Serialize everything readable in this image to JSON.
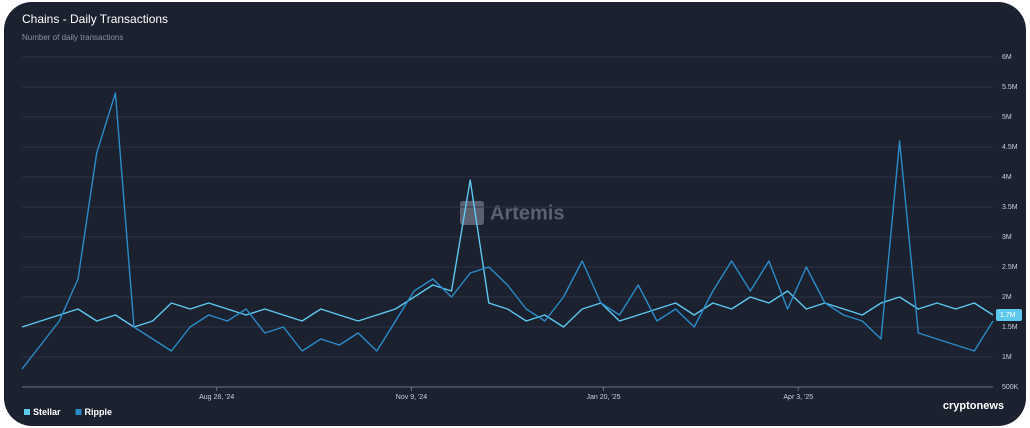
{
  "chart_data": {
    "type": "line",
    "title": "Chains - Daily Transactions",
    "subtitle": "Number of daily transactions",
    "watermark": "Artemis",
    "source": "cryptonews",
    "x": [
      "2024-06-16",
      "2024-06-23",
      "2024-06-30",
      "2024-07-07",
      "2024-07-14",
      "2024-07-21",
      "2024-07-28",
      "2024-08-04",
      "2024-08-11",
      "2024-08-18",
      "2024-08-25",
      "2024-09-01",
      "2024-09-08",
      "2024-09-15",
      "2024-09-22",
      "2024-09-29",
      "2024-10-06",
      "2024-10-13",
      "2024-10-20",
      "2024-10-27",
      "2024-11-03",
      "2024-11-10",
      "2024-11-17",
      "2024-11-24",
      "2024-12-01",
      "2024-12-08",
      "2024-12-15",
      "2024-12-22",
      "2024-12-29",
      "2025-01-05",
      "2025-01-12",
      "2025-01-19",
      "2025-01-26",
      "2025-02-02",
      "2025-02-09",
      "2025-02-16",
      "2025-02-23",
      "2025-03-02",
      "2025-03-09",
      "2025-03-16",
      "2025-03-23",
      "2025-03-30",
      "2025-04-06",
      "2025-04-13",
      "2025-04-20",
      "2025-04-27",
      "2025-05-04",
      "2025-05-11",
      "2025-05-18",
      "2025-05-25",
      "2025-06-01",
      "2025-06-08",
      "2025-06-15"
    ],
    "series": [
      {
        "name": "Stellar",
        "color": "#5ec8ef",
        "last_label": "1.7M",
        "values": [
          1500000,
          1600000,
          1700000,
          1800000,
          1600000,
          1700000,
          1500000,
          1600000,
          1900000,
          1800000,
          1900000,
          1800000,
          1700000,
          1800000,
          1700000,
          1600000,
          1800000,
          1700000,
          1600000,
          1700000,
          1800000,
          2000000,
          2200000,
          2100000,
          3950000,
          1900000,
          1800000,
          1600000,
          1700000,
          1500000,
          1800000,
          1900000,
          1600000,
          1700000,
          1800000,
          1900000,
          1700000,
          1900000,
          1800000,
          2000000,
          1900000,
          2100000,
          1800000,
          1900000,
          1800000,
          1700000,
          1900000,
          2000000,
          1800000,
          1900000,
          1800000,
          1900000,
          1700000
        ]
      },
      {
        "name": "Ripple",
        "color": "#2b8cc9",
        "values": [
          800000,
          1200000,
          1600000,
          2300000,
          4400000,
          5400000,
          1500000,
          1300000,
          1100000,
          1500000,
          1700000,
          1600000,
          1800000,
          1400000,
          1500000,
          1100000,
          1300000,
          1200000,
          1400000,
          1100000,
          1600000,
          2100000,
          2300000,
          2000000,
          2400000,
          2500000,
          2200000,
          1800000,
          1600000,
          2000000,
          2600000,
          1900000,
          1700000,
          2200000,
          1600000,
          1800000,
          1500000,
          2100000,
          2600000,
          2100000,
          2600000,
          1800000,
          2500000,
          1900000,
          1700000,
          1600000,
          1300000,
          4600000,
          1400000,
          1300000,
          1200000,
          1100000,
          1600000
        ]
      }
    ],
    "xlim": [
      "2024-06-16",
      "2025-06-15"
    ],
    "xticks": [
      {
        "value": "2024-08-28",
        "label": "Aug 28, '24"
      },
      {
        "value": "2024-11-09",
        "label": "Nov 9, '24"
      },
      {
        "value": "2025-01-20",
        "label": "Jan 20, '25"
      },
      {
        "value": "2025-04-03",
        "label": "Apr 3, '25"
      }
    ],
    "ylim": [
      500000,
      6000000
    ],
    "yticks": [
      {
        "value": 500000,
        "label": "500K"
      },
      {
        "value": 1000000,
        "label": "1M"
      },
      {
        "value": 1500000,
        "label": "1.5M"
      },
      {
        "value": 2000000,
        "label": "2M"
      },
      {
        "value": 2500000,
        "label": "2.5M"
      },
      {
        "value": 3000000,
        "label": "3M"
      },
      {
        "value": 3500000,
        "label": "3.5M"
      },
      {
        "value": 4000000,
        "label": "4M"
      },
      {
        "value": 4500000,
        "label": "4.5M"
      },
      {
        "value": 5000000,
        "label": "5M"
      },
      {
        "value": 5500000,
        "label": "5.5M"
      },
      {
        "value": 6000000,
        "label": "6M"
      }
    ],
    "grid": true
  }
}
